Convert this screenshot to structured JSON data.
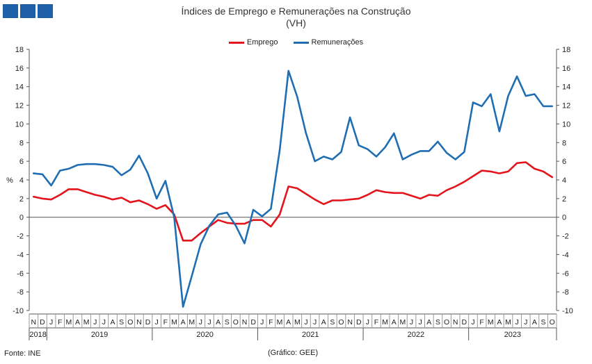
{
  "title": "Índices de Emprego e Remunerações na Construção",
  "subtitle": "(VH)",
  "source": "Fonte: INE",
  "credit": "(Gráfico: GEE)",
  "chart_data": {
    "type": "line",
    "title": "Índices de Emprego e Remunerações na Construção",
    "subtitle": "(VH)",
    "ylabel": "%",
    "ylim": [
      -10,
      18
    ],
    "yticks": [
      -10,
      -8,
      -6,
      -4,
      -2,
      0,
      2,
      4,
      6,
      8,
      10,
      12,
      14,
      16,
      18
    ],
    "grid": false,
    "legend_position": "top-center",
    "categories": [
      "N",
      "D",
      "J",
      "F",
      "M",
      "A",
      "M",
      "J",
      "J",
      "A",
      "S",
      "O",
      "N",
      "D",
      "J",
      "F",
      "M",
      "A",
      "M",
      "J",
      "J",
      "A",
      "S",
      "O",
      "N",
      "D",
      "J",
      "F",
      "M",
      "A",
      "M",
      "J",
      "J",
      "A",
      "S",
      "O",
      "N",
      "D",
      "J",
      "F",
      "M",
      "A",
      "M",
      "J",
      "J",
      "A",
      "S",
      "O",
      "N",
      "D",
      "J",
      "F",
      "M",
      "A",
      "M",
      "J",
      "J",
      "A",
      "S",
      "O"
    ],
    "year_labels": [
      {
        "label": "2018",
        "start": 0,
        "end": 1
      },
      {
        "label": "2019",
        "start": 2,
        "end": 13
      },
      {
        "label": "2020",
        "start": 14,
        "end": 25
      },
      {
        "label": "2021",
        "start": 26,
        "end": 37
      },
      {
        "label": "2022",
        "start": 38,
        "end": 49
      },
      {
        "label": "2023",
        "start": 50,
        "end": 59
      }
    ],
    "series": [
      {
        "name": "Emprego",
        "color": "#e3141b",
        "values": [
          2.2,
          2.0,
          1.9,
          2.4,
          3.0,
          3.0,
          2.7,
          2.4,
          2.2,
          1.9,
          2.1,
          1.6,
          1.8,
          1.4,
          0.9,
          1.3,
          0.3,
          -2.5,
          -2.5,
          -1.7,
          -1.0,
          -0.3,
          -0.6,
          -0.7,
          -0.7,
          -0.3,
          -0.3,
          -1.0,
          0.3,
          3.3,
          3.1,
          2.5,
          1.9,
          1.4,
          1.8,
          1.8,
          1.9,
          2.0,
          2.4,
          2.9,
          2.7,
          2.6,
          2.6,
          2.3,
          2.0,
          2.4,
          2.3,
          2.9,
          3.3,
          3.8,
          4.4,
          5.0,
          4.9,
          4.7,
          4.9,
          5.8,
          5.9,
          5.2,
          4.9,
          4.3
        ]
      },
      {
        "name": "Remunerações",
        "color": "#1f6db2",
        "values": [
          4.7,
          4.6,
          3.4,
          5.0,
          5.2,
          5.6,
          5.7,
          5.7,
          5.6,
          5.4,
          4.5,
          5.1,
          6.6,
          4.7,
          2.0,
          3.9,
          0.0,
          -9.6,
          -6.3,
          -2.9,
          -0.9,
          0.3,
          0.5,
          -0.9,
          -2.8,
          0.8,
          0.1,
          0.9,
          7.2,
          15.7,
          12.9,
          9.0,
          6.0,
          6.5,
          6.2,
          7.0,
          10.7,
          7.7,
          7.3,
          6.5,
          7.5,
          9.0,
          6.2,
          6.7,
          7.1,
          7.1,
          8.1,
          6.9,
          6.2,
          7.0,
          12.3,
          11.9,
          13.2,
          9.2,
          13.0,
          15.1,
          13.0,
          13.2,
          11.9,
          11.9
        ]
      }
    ]
  }
}
